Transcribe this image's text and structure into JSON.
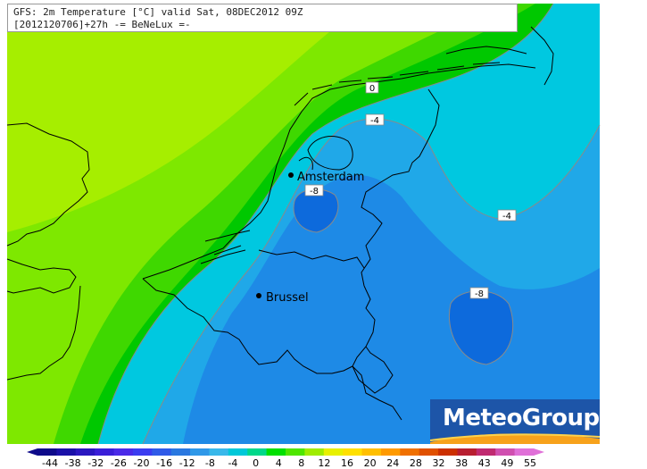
{
  "header": {
    "line1": "GFS: 2m Temperature [°C] valid Sat, 08DEC2012 09Z",
    "line2": "[2012120706]+27h -= BeNeLux =-"
  },
  "cities": [
    {
      "name": "Amsterdam"
    },
    {
      "name": "Brussel"
    }
  ],
  "contour_labels": [
    "0",
    "-4",
    "-8",
    "-4",
    "-8"
  ],
  "brand": {
    "name": "MeteoGroup"
  },
  "legend": {
    "ticks": [
      "-44",
      "-38",
      "-32",
      "-26",
      "-20",
      "-16",
      "-12",
      "-8",
      "-4",
      "0",
      "4",
      "8",
      "12",
      "16",
      "20",
      "24",
      "28",
      "32",
      "38",
      "43",
      "49",
      "55"
    ],
    "colors": [
      "#0e0a8a",
      "#1a10a8",
      "#2a17c0",
      "#3a1ed8",
      "#4a2ae8",
      "#3b3cf0",
      "#2f5ae8",
      "#2a78e0",
      "#2f98e8",
      "#39b8ea",
      "#00c8d8",
      "#00d88a",
      "#00e000",
      "#4fe600",
      "#a0ec00",
      "#e8f000",
      "#ffe000",
      "#ffbf00",
      "#ff9a00",
      "#f07000",
      "#e05000",
      "#cc3000",
      "#b81e30",
      "#c02a70",
      "#d050b0",
      "#e070d8"
    ]
  },
  "colors": {
    "sea_green": "#a6ee00",
    "light_green": "#7ee800",
    "green": "#3fd800",
    "bright_green": "#00c800",
    "cyan": "#00c8e0",
    "light_blue": "#20a8e8",
    "blue": "#1e8ae6",
    "dark_blue": "#0d6adc"
  }
}
